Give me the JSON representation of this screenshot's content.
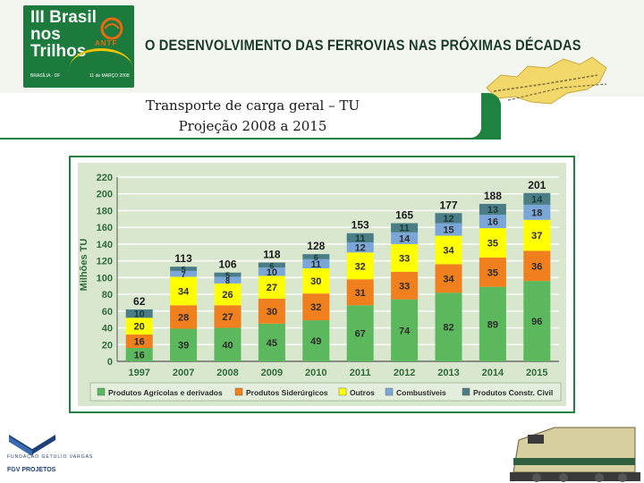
{
  "header": {
    "logo_title": "III Brasil nos Trilhos",
    "logo_place": "BRASÍLIA - DF",
    "logo_date": "11 de MARÇO 2008",
    "org_logo": "ANTF",
    "headline": "O DESENVOLVIMENTO DAS FERROVIAS NAS PRÓXIMAS DÉCADAS"
  },
  "slide": {
    "title_line1": "Transporte de carga geral – TU",
    "title_line2": "Projeção 2008 a 2015"
  },
  "footer": {
    "brand_top": "FUNDAÇÃO GETULIO VARGAS",
    "brand_bottom": "FGV PROJETOS"
  },
  "colors": {
    "green": "#1e8240",
    "agri": "#5cb85c",
    "sider": "#f07f1e",
    "outros": "#ffff00",
    "comb": "#7ba7d8",
    "civil": "#4b7d86"
  },
  "chart_data": {
    "type": "bar",
    "stacked": true,
    "ylabel": "Milhões TU",
    "xlabel": "",
    "ylim": [
      0,
      220
    ],
    "yticks": [
      0,
      20,
      40,
      60,
      80,
      100,
      120,
      140,
      160,
      180,
      200,
      220
    ],
    "grid": true,
    "legend_position": "bottom",
    "categories": [
      "1997",
      "2007",
      "2008",
      "2009",
      "2010",
      "2011",
      "2012",
      "2013",
      "2014",
      "2015"
    ],
    "totals": [
      62,
      113,
      106,
      118,
      128,
      153,
      165,
      177,
      188,
      201
    ],
    "series": [
      {
        "name": "Produtos Agrícolas e derivados",
        "color": "#5cb85c",
        "values": [
          16,
          39,
          40,
          45,
          49,
          67,
          74,
          82,
          89,
          96
        ]
      },
      {
        "name": "Produtos Siderúrgicos",
        "color": "#f07f1e",
        "values": [
          16,
          28,
          27,
          30,
          32,
          31,
          33,
          34,
          35,
          36
        ]
      },
      {
        "name": "Outros",
        "color": "#ffff00",
        "values": [
          20,
          34,
          26,
          27,
          30,
          32,
          33,
          34,
          35,
          37
        ]
      },
      {
        "name": "Combustíveis",
        "color": "#7ba7d8",
        "values": [
          null,
          7,
          8,
          10,
          11,
          12,
          14,
          15,
          16,
          18
        ]
      },
      {
        "name": "Produtos Constr. Civil",
        "color": "#4b7d86",
        "values": [
          10,
          5,
          5,
          6,
          6,
          11,
          11,
          12,
          13,
          14
        ]
      }
    ]
  }
}
